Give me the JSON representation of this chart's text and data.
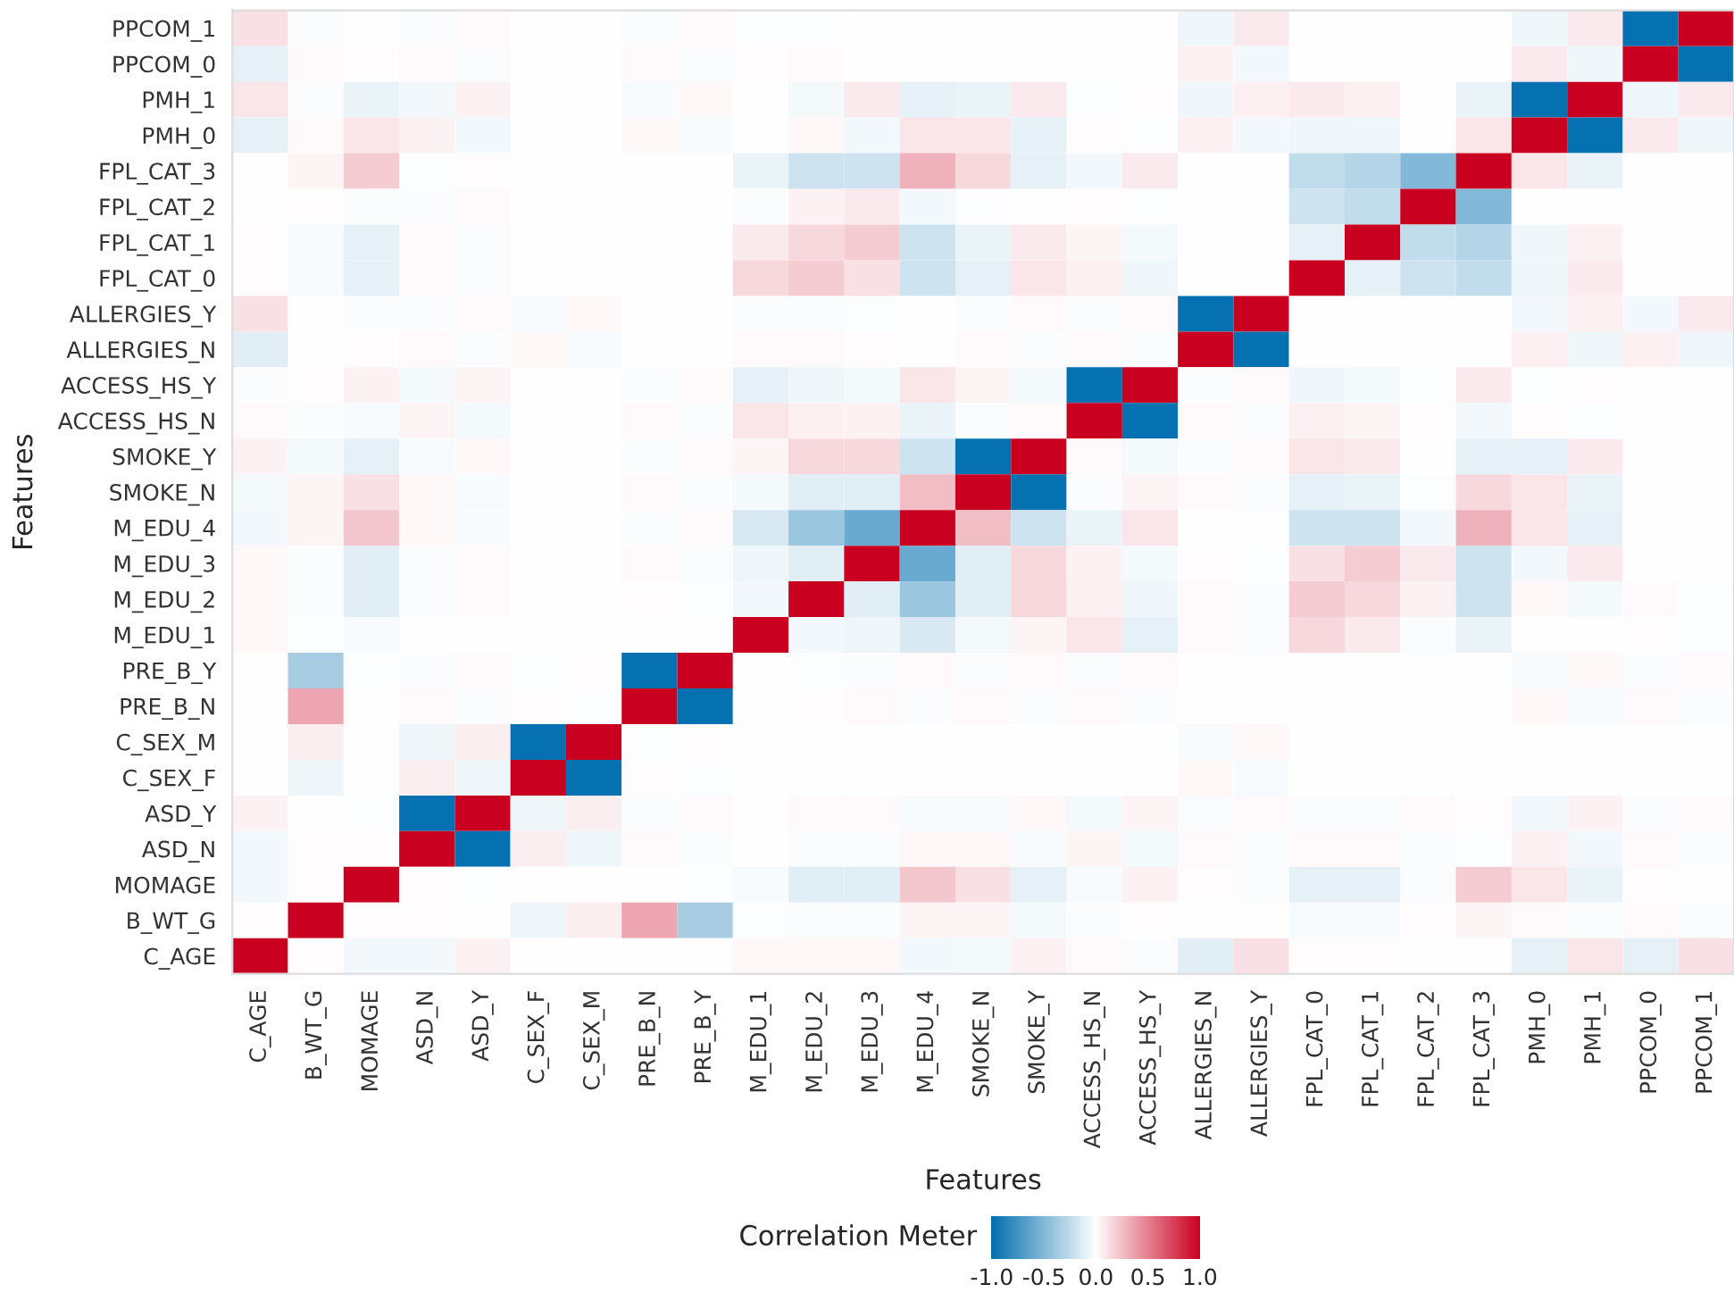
{
  "chart_data": {
    "type": "heatmap",
    "xlabel": "Features",
    "ylabel": "Features",
    "clabel": "Correlation Meter",
    "categories": [
      "C_AGE",
      "B_WT_G",
      "MOMAGE",
      "ASD_N",
      "ASD_Y",
      "C_SEX_F",
      "C_SEX_M",
      "PRE_B_N",
      "PRE_B_Y",
      "M_EDU_1",
      "M_EDU_2",
      "M_EDU_3",
      "M_EDU_4",
      "SMOKE_N",
      "SMOKE_Y",
      "ACCESS_HS_N",
      "ACCESS_HS_Y",
      "ALLERGIES_N",
      "ALLERGIES_Y",
      "FPL_CAT_0",
      "FPL_CAT_1",
      "FPL_CAT_2",
      "FPL_CAT_3",
      "PMH_0",
      "PMH_1",
      "PPCOM_0",
      "PPCOM_1"
    ],
    "y_categories": [
      "PPCOM_1",
      "PPCOM_0",
      "PMH_1",
      "PMH_0",
      "FPL_CAT_3",
      "FPL_CAT_2",
      "FPL_CAT_1",
      "FPL_CAT_0",
      "ALLERGIES_Y",
      "ALLERGIES_N",
      "ACCESS_HS_Y",
      "ACCESS_HS_N",
      "SMOKE_Y",
      "SMOKE_N",
      "M_EDU_4",
      "M_EDU_3",
      "M_EDU_2",
      "M_EDU_1",
      "PRE_B_Y",
      "PRE_B_N",
      "C_SEX_M",
      "C_SEX_F",
      "ASD_Y",
      "ASD_N",
      "MOMAGE",
      "B_WT_G",
      "C_AGE"
    ],
    "cells": [
      [
        0.12,
        -0.02,
        0,
        -0.02,
        0.02,
        0,
        0,
        -0.02,
        0.02,
        -0.01,
        -0.01,
        0,
        0,
        0,
        0,
        0,
        0,
        -0.06,
        0.08,
        0,
        0,
        0,
        0,
        -0.06,
        0.08,
        -1,
        1
      ],
      [
        -0.1,
        0.02,
        0.01,
        0.02,
        -0.02,
        0,
        0,
        0.02,
        -0.02,
        0.01,
        0.02,
        0,
        0,
        0,
        0,
        0,
        0,
        0.06,
        -0.05,
        0,
        0,
        0,
        0,
        0.08,
        -0.06,
        1,
        -1
      ],
      [
        0.1,
        -0.02,
        -0.08,
        -0.05,
        0.05,
        0,
        0,
        -0.03,
        0.03,
        0,
        -0.04,
        0.08,
        -0.1,
        -0.08,
        0.08,
        -0.01,
        0.01,
        -0.06,
        0.06,
        0.08,
        0.06,
        0,
        -0.08,
        -1,
        1,
        -0.06,
        0.08
      ],
      [
        -0.1,
        0.02,
        0.1,
        0.05,
        -0.05,
        0,
        0,
        0.03,
        -0.03,
        0,
        0.03,
        -0.05,
        0.1,
        0.1,
        -0.1,
        0.01,
        -0.01,
        0.06,
        -0.05,
        -0.06,
        -0.06,
        0,
        0.1,
        1,
        -1,
        0.08,
        -0.06
      ],
      [
        0,
        0.04,
        0.2,
        -0.01,
        0.01,
        0,
        0,
        0,
        0,
        -0.08,
        -0.2,
        -0.2,
        0.3,
        0.15,
        -0.1,
        -0.05,
        0.08,
        0,
        0,
        -0.25,
        -0.3,
        -0.5,
        1,
        0.1,
        -0.08,
        0,
        0
      ],
      [
        0,
        0.01,
        -0.02,
        -0.02,
        0.02,
        0,
        0,
        0,
        0,
        -0.02,
        0.05,
        0.08,
        -0.05,
        -0.01,
        0,
        0.01,
        -0.01,
        0,
        0,
        -0.2,
        -0.25,
        1,
        -0.5,
        0,
        0,
        0,
        0
      ],
      [
        0.01,
        -0.03,
        -0.1,
        0.02,
        -0.02,
        0,
        0,
        0,
        0,
        0.08,
        0.15,
        0.2,
        -0.2,
        -0.08,
        0.08,
        0.04,
        -0.04,
        0,
        0,
        -0.1,
        1,
        -0.25,
        -0.3,
        -0.06,
        0.06,
        0,
        0
      ],
      [
        0.01,
        -0.03,
        -0.1,
        0.02,
        -0.02,
        0,
        0,
        0,
        0,
        0.15,
        0.2,
        0.12,
        -0.2,
        -0.1,
        0.1,
        0.06,
        -0.06,
        0,
        0,
        1,
        -0.1,
        -0.2,
        -0.25,
        -0.06,
        0.08,
        0,
        0
      ],
      [
        0.12,
        0,
        -0.02,
        -0.02,
        0.02,
        -0.03,
        0.03,
        0,
        0,
        -0.02,
        -0.02,
        -0.01,
        0,
        -0.02,
        0.02,
        -0.02,
        0.02,
        -1,
        1,
        0,
        0,
        0,
        0,
        -0.05,
        0.06,
        -0.05,
        0.08
      ],
      [
        -0.12,
        0,
        0.01,
        0.02,
        -0.02,
        0.03,
        -0.03,
        0,
        0,
        0.02,
        0.02,
        0.01,
        0,
        0.02,
        -0.02,
        0.02,
        -0.02,
        1,
        -1,
        0,
        0,
        0,
        0,
        0.06,
        -0.06,
        0.06,
        -0.06
      ],
      [
        -0.02,
        0.01,
        0.05,
        -0.04,
        0.04,
        0,
        0,
        -0.02,
        0.02,
        -0.1,
        -0.06,
        -0.04,
        0.1,
        0.04,
        -0.04,
        -1,
        1,
        -0.02,
        0.02,
        -0.06,
        -0.04,
        -0.01,
        0.08,
        -0.01,
        0.01,
        0,
        0
      ],
      [
        0.02,
        -0.02,
        -0.03,
        0.04,
        -0.04,
        0,
        0,
        0.02,
        -0.02,
        0.1,
        0.06,
        0.05,
        -0.08,
        -0.02,
        0.02,
        1,
        -1,
        0.02,
        -0.02,
        0.06,
        0.04,
        0.01,
        -0.05,
        0.01,
        -0.01,
        0,
        0
      ],
      [
        0.05,
        -0.04,
        -0.1,
        -0.03,
        0.03,
        0,
        0,
        -0.02,
        0.02,
        0.04,
        0.15,
        0.15,
        -0.2,
        -1,
        1,
        0.02,
        -0.04,
        -0.02,
        0.02,
        0.1,
        0.08,
        0,
        -0.1,
        -0.1,
        0.08,
        0,
        0
      ],
      [
        -0.04,
        0.04,
        0.12,
        0.03,
        -0.03,
        0,
        0,
        0.02,
        -0.02,
        -0.04,
        -0.12,
        -0.12,
        0.25,
        1,
        -1,
        -0.02,
        0.04,
        0.02,
        -0.02,
        -0.1,
        -0.08,
        -0.01,
        0.15,
        0.1,
        -0.08,
        0,
        0
      ],
      [
        -0.05,
        0.04,
        0.22,
        0.03,
        -0.03,
        0,
        0,
        -0.02,
        0.02,
        -0.15,
        -0.4,
        -0.6,
        1,
        0.25,
        -0.2,
        -0.08,
        0.1,
        0,
        0,
        -0.2,
        -0.2,
        -0.05,
        0.3,
        0.1,
        -0.1,
        0,
        0
      ],
      [
        0.03,
        -0.02,
        -0.12,
        -0.02,
        0.02,
        0,
        0,
        0.02,
        -0.02,
        -0.07,
        -0.12,
        1,
        -0.6,
        -0.12,
        0.15,
        0.05,
        -0.04,
        0.01,
        -0.01,
        0.12,
        0.2,
        0.08,
        -0.2,
        -0.05,
        0.08,
        0,
        0
      ],
      [
        0.03,
        -0.02,
        -0.12,
        -0.02,
        0.02,
        0,
        0,
        0.01,
        -0.01,
        -0.05,
        1,
        -0.12,
        -0.4,
        -0.12,
        0.15,
        0.06,
        -0.06,
        0.02,
        -0.02,
        0.2,
        0.15,
        0.05,
        -0.2,
        0.03,
        -0.04,
        0.02,
        -0.01
      ],
      [
        0.03,
        -0.01,
        -0.03,
        0,
        0,
        0,
        0,
        0,
        0,
        1,
        -0.05,
        -0.07,
        -0.15,
        -0.04,
        0.04,
        0.1,
        -0.1,
        0.02,
        -0.02,
        0.15,
        0.08,
        -0.02,
        -0.08,
        0,
        0,
        0.01,
        -0.01
      ],
      [
        0,
        -0.35,
        -0.01,
        -0.02,
        0.02,
        -0.01,
        0.01,
        -1,
        1,
        0,
        -0.01,
        -0.02,
        0.02,
        -0.02,
        0.02,
        -0.02,
        0.02,
        0,
        0,
        0,
        0,
        0,
        0,
        -0.03,
        0.03,
        -0.02,
        0.02
      ],
      [
        0,
        0.35,
        0,
        0.02,
        -0.02,
        0.01,
        -0.01,
        1,
        -1,
        0,
        0.01,
        0.02,
        -0.02,
        0.02,
        -0.02,
        0.02,
        -0.02,
        0,
        0,
        0,
        0,
        0,
        0,
        0.03,
        -0.03,
        0.02,
        -0.02
      ],
      [
        0,
        0.07,
        0,
        -0.07,
        0.07,
        -1,
        1,
        -0.01,
        0.01,
        0,
        0,
        0,
        0,
        0,
        0,
        0,
        0,
        -0.03,
        0.03,
        0,
        0,
        0,
        0,
        0,
        0,
        0,
        0
      ],
      [
        0,
        -0.07,
        0,
        0.07,
        -0.07,
        1,
        -1,
        0.01,
        -0.01,
        0,
        0,
        0,
        0,
        0,
        0,
        0,
        0,
        0.03,
        -0.03,
        0,
        0,
        0,
        0,
        0,
        0,
        0,
        0
      ],
      [
        0.05,
        0,
        -0.01,
        -1,
        1,
        -0.07,
        0.07,
        -0.02,
        0.02,
        0,
        0.02,
        0.02,
        -0.03,
        -0.03,
        0.03,
        -0.04,
        0.04,
        -0.02,
        0.02,
        -0.02,
        -0.02,
        0.02,
        0.01,
        -0.05,
        0.05,
        -0.02,
        0.02
      ],
      [
        -0.05,
        0.01,
        0.01,
        1,
        -1,
        0.07,
        -0.07,
        0.02,
        -0.02,
        0,
        -0.02,
        -0.02,
        0.03,
        0.03,
        -0.03,
        0.04,
        -0.04,
        0.02,
        -0.02,
        0.02,
        0.02,
        -0.02,
        -0.01,
        0.05,
        -0.05,
        0.02,
        -0.02
      ],
      [
        -0.05,
        0.01,
        1,
        0.01,
        -0.01,
        0,
        0,
        0,
        -0.01,
        -0.03,
        -0.12,
        -0.12,
        0.22,
        0.12,
        -0.1,
        -0.03,
        0.05,
        0.01,
        -0.02,
        -0.1,
        -0.1,
        -0.02,
        0.2,
        0.1,
        -0.08,
        0.01,
        0
      ],
      [
        0.01,
        1,
        0.01,
        0.01,
        0,
        -0.07,
        0.07,
        0.35,
        -0.35,
        -0.01,
        -0.02,
        -0.02,
        0.04,
        0.04,
        -0.04,
        -0.02,
        0.01,
        0,
        0,
        -0.03,
        -0.03,
        0.01,
        0.04,
        0.02,
        -0.02,
        0.02,
        -0.02
      ],
      [
        1,
        0.01,
        -0.05,
        -0.05,
        0.05,
        0,
        0,
        0,
        0,
        0.03,
        0.03,
        0.03,
        -0.05,
        -0.04,
        0.05,
        0.02,
        -0.02,
        -0.12,
        0.12,
        0.01,
        0.01,
        0,
        0,
        -0.1,
        0.1,
        -0.1,
        0.12
      ]
    ],
    "clim": [
      -1,
      1
    ],
    "cticks": [
      {
        "value": -1,
        "label": "-1.0"
      },
      {
        "value": -0.5,
        "label": "-0.5"
      },
      {
        "value": 0,
        "label": "0.0"
      },
      {
        "value": 0.5,
        "label": "0.5"
      },
      {
        "value": 1,
        "label": "1.0"
      }
    ]
  }
}
